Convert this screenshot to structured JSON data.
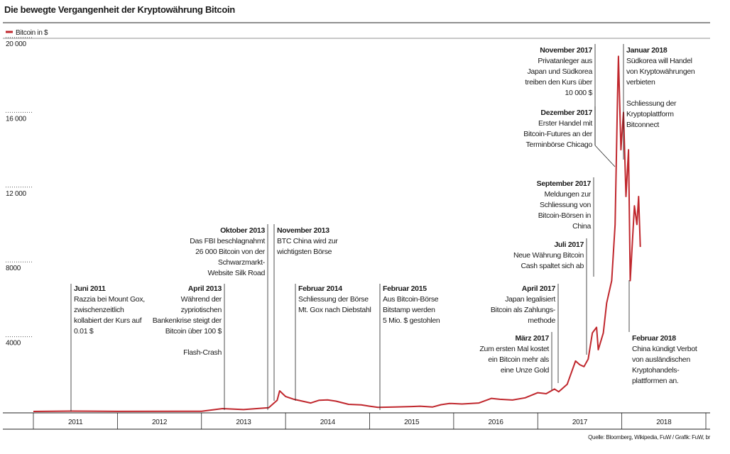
{
  "chart_data": {
    "type": "line",
    "title": "Die bewegte Vergangenheit der Kryptowährung Bitcoin",
    "source": "Quelle: Bloomberg, Wikipedia, FuW / Grafik: FuW, br",
    "series": [
      {
        "name": "Bitcoin in $",
        "color": "#c0272d",
        "x": [
          2011.0,
          2011.45,
          2012.0,
          2013.0,
          2013.25,
          2013.5,
          2013.8,
          2013.9,
          2013.93,
          2014.0,
          2014.1,
          2014.2,
          2014.3,
          2014.4,
          2014.5,
          2014.6,
          2014.75,
          2014.9,
          2015.0,
          2015.1,
          2015.3,
          2015.5,
          2015.6,
          2015.75,
          2015.85,
          2015.95,
          2016.1,
          2016.3,
          2016.45,
          2016.55,
          2016.7,
          2016.85,
          2017.0,
          2017.1,
          2017.2,
          2017.25,
          2017.35,
          2017.45,
          2017.5,
          2017.55,
          2017.6,
          2017.65,
          2017.7,
          2017.72,
          2017.78,
          2017.82,
          2017.88,
          2017.92,
          2017.95,
          2017.96,
          2017.99,
          2018.02,
          2018.05,
          2018.08,
          2018.1,
          2018.15,
          2018.18,
          2018.2,
          2018.22
        ],
        "values": [
          0.3,
          20,
          5,
          13,
          150,
          100,
          200,
          600,
          1100,
          800,
          650,
          550,
          450,
          600,
          620,
          550,
          380,
          350,
          280,
          220,
          240,
          260,
          280,
          240,
          360,
          430,
          400,
          450,
          700,
          650,
          610,
          730,
          1000,
          950,
          1200,
          1050,
          1450,
          2700,
          2500,
          2400,
          2800,
          4200,
          4500,
          3300,
          4200,
          5800,
          7000,
          10000,
          17000,
          19000,
          14000,
          16000,
          11500,
          14000,
          7000,
          11000,
          10000,
          11500,
          8800
        ]
      }
    ],
    "xlim": [
      2011,
      2019
    ],
    "xticks": [
      {
        "value": 2011.5,
        "label": "2011"
      },
      {
        "value": 2012.5,
        "label": "2012"
      },
      {
        "value": 2013.5,
        "label": "2013"
      },
      {
        "value": 2014.5,
        "label": "2014"
      },
      {
        "value": 2015.5,
        "label": "2015"
      },
      {
        "value": 2016.5,
        "label": "2016"
      },
      {
        "value": 2017.5,
        "label": "2017"
      },
      {
        "value": 2018.5,
        "label": "2018"
      }
    ],
    "ylim": [
      0,
      20000
    ],
    "yticks": [
      {
        "value": 4000,
        "label": "4000"
      },
      {
        "value": 8000,
        "label": "8000"
      },
      {
        "value": 12000,
        "label": "12 000"
      },
      {
        "value": 16000,
        "label": "16 000"
      },
      {
        "value": 20000,
        "label": "20 000"
      }
    ],
    "annotations": [
      {
        "title": "Juni 2011",
        "text": [
          [
            "Razzia bei Mount Gox,",
            "zwischenzeitlich",
            "kollabiert der Kurs auf",
            "0.01 $"
          ]
        ]
      },
      {
        "title": "April 2013",
        "text": [
          [
            "Während der",
            "zypriotischen",
            "Bankenkrise steigt der",
            "Bitcoin über 100 $"
          ],
          [
            "Flash-Crash"
          ]
        ]
      },
      {
        "title": "Oktober 2013",
        "text": [
          [
            "Das FBI beschlagnahmt",
            "26 000 Bitcoin von der",
            "Schwarzmarkt-",
            "Website Silk Road"
          ]
        ]
      },
      {
        "title": "November 2013",
        "text": [
          [
            "BTC China wird zur",
            "wichtigsten Börse"
          ]
        ]
      },
      {
        "title": "Februar 2014",
        "text": [
          [
            "Schliessung der Börse",
            "Mt. Gox nach Diebstahl"
          ]
        ]
      },
      {
        "title": "Februar 2015",
        "text": [
          [
            "Aus Bitcoin-Börse",
            "Bitstamp werden",
            "5 Mio. $ gestohlen"
          ]
        ]
      },
      {
        "title": "März 2017",
        "text": [
          [
            "Zum ersten Mal kostet",
            "ein Bitcoin mehr als",
            "eine Unze Gold"
          ]
        ]
      },
      {
        "title": "April 2017",
        "text": [
          [
            "Japan legalisiert",
            "Bitcoin als Zahlungs-",
            "methode"
          ]
        ]
      },
      {
        "title": "Juli 2017",
        "text": [
          [
            "Neue Währung Bitcoin",
            "Cash spaltet sich ab"
          ]
        ]
      },
      {
        "title": "September 2017",
        "text": [
          [
            "Meldungen zur",
            "Schliessung von",
            "Bitcoin-Börsen in",
            "China"
          ]
        ]
      },
      {
        "title": "November 2017",
        "text": [
          [
            "Privatanleger aus",
            "Japan und Südkorea",
            "treiben den Kurs über",
            "10 000 $"
          ]
        ]
      },
      {
        "title": "Dezember 2017",
        "text": [
          [
            "Erster Handel mit",
            "Bitcoin-Futures an der",
            "Terminbörse Chicago"
          ]
        ]
      },
      {
        "title": "Januar 2018",
        "text": [
          [
            "Südkorea will Handel",
            "von Kryptowährungen",
            "verbieten"
          ],
          [
            "Schliessung der",
            "Kryptoplattform",
            "Bitconnect"
          ]
        ]
      },
      {
        "title": "Februar 2018",
        "text": [
          [
            "China kündigt Verbot",
            "von ausländischen",
            "Kryptohandels-",
            "plattformen an."
          ]
        ]
      }
    ]
  }
}
